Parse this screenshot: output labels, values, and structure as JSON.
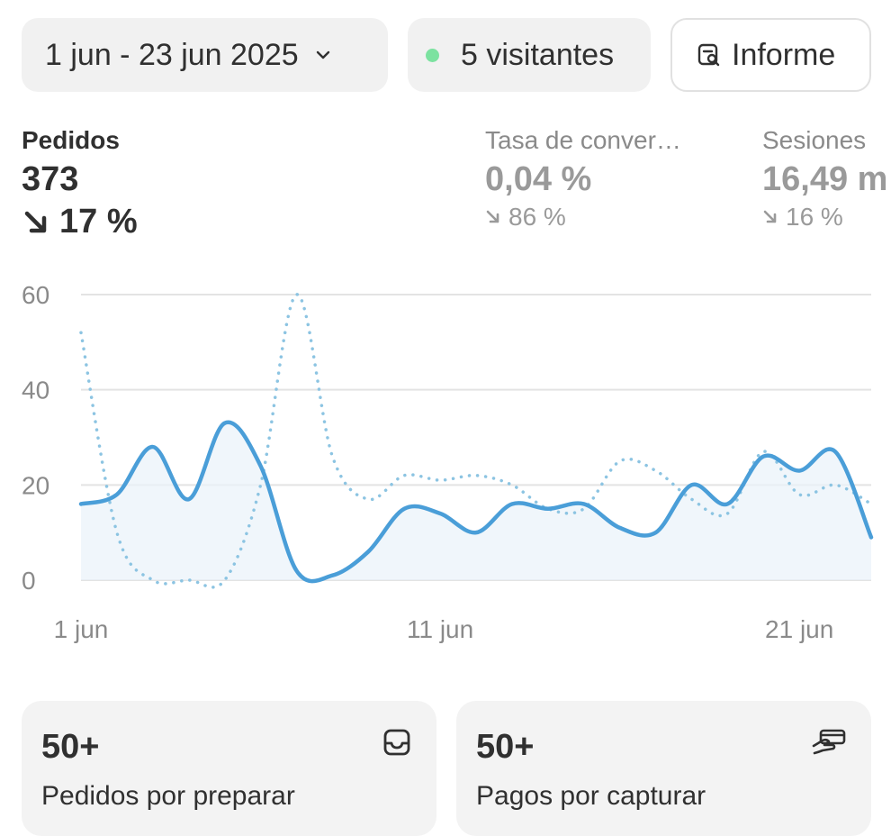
{
  "toolbar": {
    "date_range": "1 jun - 23 jun 2025",
    "visitors": "5 visitantes",
    "report": "Informe"
  },
  "metrics": [
    {
      "label": "Pedidos",
      "value": "373",
      "delta": "17 %",
      "trend": "down"
    },
    {
      "label": "Tasa de conver…",
      "value": "0,04 %",
      "delta": "86 %",
      "trend": "down"
    },
    {
      "label": "Sesiones",
      "value": "16,49 m",
      "delta": "16 %",
      "trend": "down"
    }
  ],
  "chart_data": {
    "type": "line",
    "ylim": [
      0,
      60
    ],
    "yticks": [
      "60",
      "40",
      "20",
      "0"
    ],
    "xtick_labels": [
      "1 jun",
      "11 jun",
      "21 jun"
    ],
    "series": [
      {
        "style": "solid",
        "color": "#4a9ed8",
        "values": [
          16,
          18,
          28,
          17,
          33,
          24,
          2,
          1,
          6,
          15,
          14,
          10,
          16,
          15,
          16,
          11,
          10,
          20,
          16,
          26,
          23,
          27,
          9
        ]
      },
      {
        "style": "dotted",
        "color": "#8cc4e2",
        "values": [
          52,
          10,
          0,
          0,
          0,
          20,
          60,
          26,
          17,
          22,
          21,
          22,
          20,
          15,
          15,
          25,
          23,
          17,
          14,
          27,
          18,
          20,
          16
        ]
      }
    ]
  },
  "cards": [
    {
      "value": "50+",
      "label": "Pedidos por preparar",
      "icon": "inbox-icon"
    },
    {
      "value": "50+",
      "label": "Pagos por capturar",
      "icon": "hand-card-icon"
    }
  ],
  "colors": {
    "accent_line": "#4a9ed8",
    "comparison_line": "#8cc4e2",
    "live_dot": "#7ce2a0"
  }
}
